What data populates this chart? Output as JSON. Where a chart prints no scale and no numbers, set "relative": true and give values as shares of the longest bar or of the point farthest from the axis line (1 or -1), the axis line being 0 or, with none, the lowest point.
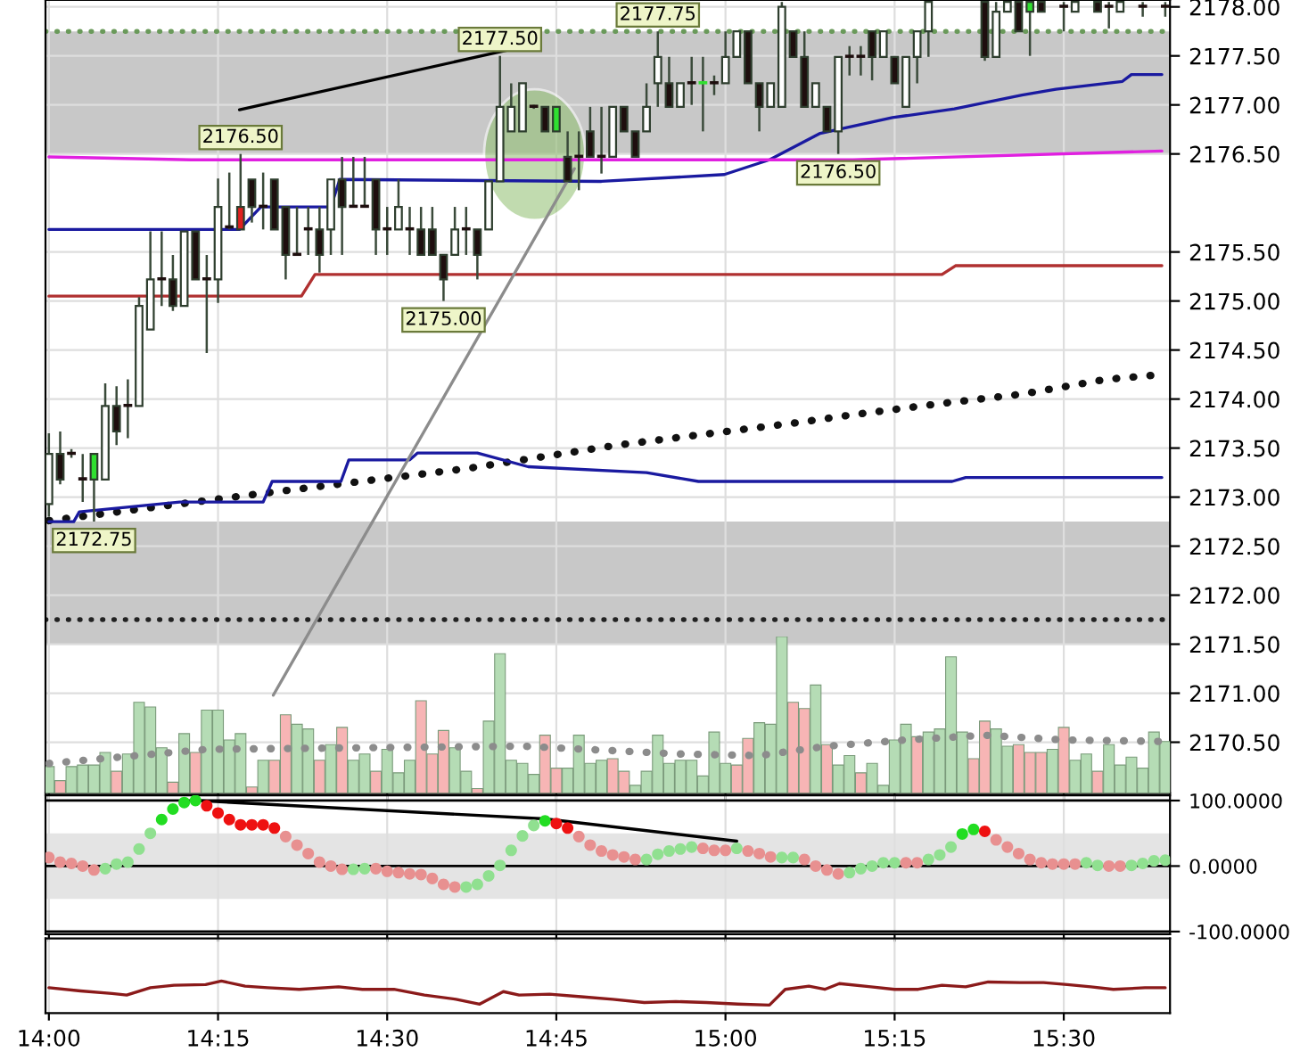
{
  "chart_data": [
    {
      "type": "candlestick",
      "xlim": [
        13.995,
        15.657
      ],
      "ylim": [
        2169.98,
        2178.07
      ],
      "tick_labels": "y",
      "grid": true,
      "xticks": [
        {
          "value": 14.0,
          "label": null
        },
        {
          "value": 14.25,
          "label": null
        },
        {
          "value": 14.5,
          "label": null
        },
        {
          "value": 14.75,
          "label": null
        },
        {
          "value": 15.0,
          "label": null
        },
        {
          "value": 15.25,
          "label": null
        },
        {
          "value": 15.5,
          "label": null
        }
      ],
      "yticks": [
        {
          "value": 2178.0,
          "label": "2178.00"
        },
        {
          "value": 2177.5,
          "label": "2177.50"
        },
        {
          "value": 2177.0,
          "label": "2177.00"
        },
        {
          "value": 2176.5,
          "label": "2176.50"
        },
        {
          "value": 2175.5,
          "label": "2175.50"
        },
        {
          "value": 2175.0,
          "label": "2175.00"
        },
        {
          "value": 2174.5,
          "label": "2174.50"
        },
        {
          "value": 2174.0,
          "label": "2174.00"
        },
        {
          "value": 2173.5,
          "label": "2173.50"
        },
        {
          "value": 2173.0,
          "label": "2173.00"
        },
        {
          "value": 2172.5,
          "label": "2172.50"
        },
        {
          "value": 2172.0,
          "label": "2172.00"
        },
        {
          "value": 2171.5,
          "label": "2171.50"
        },
        {
          "value": 2171.0,
          "label": "2171.00"
        },
        {
          "value": 2170.5,
          "label": "2170.50"
        }
      ],
      "x": [
        14.0,
        14.0167,
        14.0333,
        14.05,
        14.0667,
        14.0833,
        14.1,
        14.1167,
        14.1333,
        14.15,
        14.1667,
        14.1833,
        14.2,
        14.2167,
        14.2333,
        14.25,
        14.2667,
        14.2833,
        14.3,
        14.3167,
        14.3333,
        14.35,
        14.3667,
        14.3833,
        14.4,
        14.4167,
        14.4333,
        14.45,
        14.4667,
        14.4833,
        14.5,
        14.5167,
        14.5333,
        14.55,
        14.5667,
        14.5833,
        14.6,
        14.6167,
        14.6333,
        14.65,
        14.6667,
        14.6833,
        14.7,
        14.7167,
        14.7333,
        14.75,
        14.7667,
        14.7833,
        14.8,
        14.8167,
        14.8333,
        14.85,
        14.8667,
        14.8833,
        14.9,
        14.9167,
        14.9333,
        14.95,
        14.9667,
        14.9833,
        15.0,
        15.0167,
        15.0333,
        15.05,
        15.0667,
        15.0833,
        15.1,
        15.1167,
        15.1333,
        15.15,
        15.1667,
        15.1833,
        15.2,
        15.2167,
        15.2333,
        15.25,
        15.2667,
        15.2833,
        15.3,
        15.3833,
        15.4,
        15.4167,
        15.4333,
        15.45,
        15.4667,
        15.5,
        15.5167,
        15.55,
        15.5667,
        15.5833,
        15.6167,
        15.65
      ],
      "ohlc": [
        [
          2172.93,
          2173.65,
          2172.8,
          2173.44
        ],
        [
          2173.44,
          2173.67,
          2173.13,
          2173.18
        ],
        [
          2173.44,
          2173.49,
          2173.4,
          2173.44
        ],
        [
          2173.18,
          2173.44,
          2172.95,
          2173.18
        ],
        [
          2173.18,
          2173.44,
          2172.75,
          2173.44
        ],
        [
          2173.18,
          2174.16,
          2173.18,
          2173.93
        ],
        [
          2173.93,
          2174.13,
          2173.53,
          2173.67
        ],
        [
          2173.93,
          2174.2,
          2173.6,
          2173.93
        ],
        [
          2173.93,
          2175.04,
          2173.93,
          2174.95
        ],
        [
          2174.71,
          2175.71,
          2174.71,
          2175.22
        ],
        [
          2175.22,
          2175.71,
          2174.95,
          2175.22
        ],
        [
          2175.22,
          2175.47,
          2174.9,
          2174.95
        ],
        [
          2174.95,
          2175.71,
          2174.95,
          2175.71
        ],
        [
          2175.71,
          2175.71,
          2175.22,
          2175.22
        ],
        [
          2175.22,
          2175.47,
          2174.47,
          2175.22
        ],
        [
          2175.22,
          2176.25,
          2174.98,
          2175.96
        ],
        [
          2175.75,
          2176.31,
          2175.73,
          2175.75
        ],
        [
          2175.96,
          2176.5,
          2175.73,
          2175.73
        ],
        [
          2176.24,
          2176.24,
          2175.8,
          2175.96
        ],
        [
          2175.96,
          2176.31,
          2175.73,
          2175.96
        ],
        [
          2176.24,
          2176.24,
          2175.73,
          2175.73
        ],
        [
          2175.96,
          2175.96,
          2175.22,
          2175.47
        ],
        [
          2175.47,
          2175.96,
          2175.47,
          2175.47
        ],
        [
          2175.73,
          2175.96,
          2175.47,
          2175.73
        ],
        [
          2175.73,
          2175.96,
          2175.29,
          2175.47
        ],
        [
          2175.73,
          2176.24,
          2175.47,
          2176.24
        ],
        [
          2176.24,
          2176.47,
          2175.47,
          2175.96
        ],
        [
          2175.96,
          2176.47,
          2175.96,
          2175.96
        ],
        [
          2175.96,
          2176.47,
          2175.96,
          2175.96
        ],
        [
          2176.24,
          2176.24,
          2175.47,
          2175.73
        ],
        [
          2175.73,
          2175.96,
          2175.47,
          2175.73
        ],
        [
          2175.73,
          2176.24,
          2175.73,
          2175.96
        ],
        [
          2175.73,
          2175.96,
          2175.47,
          2175.73
        ],
        [
          2175.73,
          2175.96,
          2175.47,
          2175.47
        ],
        [
          2175.73,
          2175.96,
          2175.47,
          2175.47
        ],
        [
          2175.47,
          2175.47,
          2175.0,
          2175.22
        ],
        [
          2175.47,
          2175.96,
          2175.47,
          2175.73
        ],
        [
          2175.73,
          2175.96,
          2175.47,
          2175.73
        ],
        [
          2175.73,
          2175.73,
          2175.22,
          2175.47
        ],
        [
          2175.73,
          2176.22,
          2175.73,
          2176.22
        ],
        [
          2176.22,
          2177.5,
          2176.22,
          2176.98
        ],
        [
          2176.73,
          2177.22,
          2176.73,
          2176.98
        ],
        [
          2176.73,
          2177.22,
          2176.73,
          2177.22
        ],
        [
          2176.98,
          2177.0,
          2176.96,
          2176.98
        ],
        [
          2176.98,
          2176.98,
          2176.73,
          2176.73
        ],
        [
          2176.73,
          2176.98,
          2176.73,
          2176.98
        ],
        [
          2176.47,
          2176.73,
          2176.22,
          2176.22
        ],
        [
          2176.47,
          2176.73,
          2176.13,
          2176.47
        ],
        [
          2176.73,
          2176.98,
          2176.47,
          2176.47
        ],
        [
          2176.47,
          2176.98,
          2176.3,
          2176.47
        ],
        [
          2176.47,
          2176.98,
          2176.47,
          2176.98
        ],
        [
          2176.98,
          2176.98,
          2176.73,
          2176.73
        ],
        [
          2176.73,
          2176.73,
          2176.47,
          2176.47
        ],
        [
          2176.73,
          2177.22,
          2176.73,
          2176.98
        ],
        [
          2177.22,
          2177.75,
          2176.98,
          2177.49
        ],
        [
          2177.22,
          2177.49,
          2176.98,
          2176.98
        ],
        [
          2176.98,
          2177.22,
          2176.98,
          2177.22
        ],
        [
          2177.22,
          2177.49,
          2177.0,
          2177.22
        ],
        [
          2177.22,
          2177.49,
          2176.73,
          2177.22
        ],
        [
          2177.22,
          2177.3,
          2177.1,
          2177.22
        ],
        [
          2177.22,
          2177.75,
          2177.22,
          2177.49
        ],
        [
          2177.49,
          2177.75,
          2177.49,
          2177.75
        ],
        [
          2177.75,
          2177.75,
          2177.22,
          2177.22
        ],
        [
          2177.22,
          2177.22,
          2176.73,
          2176.98
        ],
        [
          2176.98,
          2177.22,
          2176.98,
          2177.22
        ],
        [
          2176.98,
          2178.05,
          2176.98,
          2178.0
        ],
        [
          2177.75,
          2177.75,
          2177.49,
          2177.49
        ],
        [
          2177.49,
          2177.75,
          2176.98,
          2176.98
        ],
        [
          2176.98,
          2177.22,
          2176.98,
          2177.22
        ],
        [
          2176.98,
          2176.98,
          2176.73,
          2176.73
        ],
        [
          2176.73,
          2177.49,
          2176.5,
          2177.49
        ],
        [
          2177.49,
          2177.6,
          2177.3,
          2177.49
        ],
        [
          2177.49,
          2177.6,
          2177.3,
          2177.49
        ],
        [
          2177.75,
          2177.75,
          2177.25,
          2177.49
        ],
        [
          2177.49,
          2177.75,
          2177.49,
          2177.75
        ],
        [
          2177.49,
          2177.49,
          2177.22,
          2177.22
        ],
        [
          2176.98,
          2177.49,
          2176.98,
          2177.49
        ],
        [
          2177.49,
          2177.75,
          2177.22,
          2177.75
        ],
        [
          2177.75,
          2178.05,
          2177.49,
          2178.05
        ],
        [
          2178.05,
          2178.05,
          2177.45,
          2177.49
        ],
        [
          2177.49,
          2178.05,
          2177.49,
          2177.95
        ],
        [
          2177.95,
          2178.05,
          2177.95,
          2178.05
        ],
        [
          2178.05,
          2178.05,
          2177.75,
          2177.75
        ],
        [
          2177.95,
          2178.05,
          2177.5,
          2178.05
        ],
        [
          2178.05,
          2178.05,
          2177.95,
          2177.95
        ],
        [
          2178.0,
          2178.05,
          2177.75,
          2178.0
        ],
        [
          2177.95,
          2178.05,
          2177.95,
          2178.05
        ],
        [
          2178.05,
          2178.05,
          2177.95,
          2177.95
        ],
        [
          2178.0,
          2178.05,
          2177.78,
          2178.0
        ],
        [
          2177.95,
          2178.05,
          2177.95,
          2178.05
        ],
        [
          2178.0,
          2178.05,
          2177.9,
          2178.0
        ],
        [
          2178.0,
          2178.05,
          2177.9,
          2178.0
        ]
      ],
      "colors": [
        "#ffffff",
        "#1e0e0e",
        "#1e0e0e",
        "#1e0e0e",
        "#30e030",
        "#ffffff",
        "#1e0e0e",
        "#1e0e0e",
        "#ffffff",
        "#ffffff",
        "#1e0e0e",
        "#1e0e0e",
        "#ffffff",
        "#1e0e0e",
        "#1e0e0e",
        "#ffffff",
        "#1e0e0e",
        "#e02020",
        "#1e0e0e",
        "#1e0e0e",
        "#1e0e0e",
        "#1e0e0e",
        "#1e0e0e",
        "#1e0e0e",
        "#1e0e0e",
        "#ffffff",
        "#1e0e0e",
        "#1e0e0e",
        "#1e0e0e",
        "#1e0e0e",
        "#1e0e0e",
        "#ffffff",
        "#1e0e0e",
        "#1e0e0e",
        "#1e0e0e",
        "#1e0e0e",
        "#ffffff",
        "#1e0e0e",
        "#1e0e0e",
        "#ffffff",
        "#ffffff",
        "#ffffff",
        "#ffffff",
        "#1e0e0e",
        "#1e0e0e",
        "#30e030",
        "#1e0e0e",
        "#1e0e0e",
        "#1e0e0e",
        "#1e0e0e",
        "#ffffff",
        "#1e0e0e",
        "#1e0e0e",
        "#ffffff",
        "#ffffff",
        "#1e0e0e",
        "#ffffff",
        "#1e0e0e",
        "#30e030",
        "#1e0e0e",
        "#ffffff",
        "#ffffff",
        "#1e0e0e",
        "#1e0e0e",
        "#ffffff",
        "#ffffff",
        "#1e0e0e",
        "#1e0e0e",
        "#ffffff",
        "#1e0e0e",
        "#ffffff",
        "#1e0e0e",
        "#1e0e0e",
        "#1e0e0e",
        "#ffffff",
        "#1e0e0e",
        "#ffffff",
        "#ffffff",
        "#ffffff",
        "#1e0e0e",
        "#ffffff",
        "#ffffff",
        "#1e0e0e",
        "#30e030",
        "#1e0e0e",
        "#1e0e0e",
        "#ffffff",
        "#1e0e0e",
        "#1e0e0e",
        "#ffffff",
        "#1e0e0e",
        "#1e0e0e"
      ],
      "series": [
        {
          "type": "line",
          "color": "#111111",
          "line_style": "dotted",
          "x": [
            14.0,
            14.3183,
            14.6167,
            14.84,
            15.1067,
            15.1883,
            15.3133,
            15.4383,
            15.5617,
            15.645
          ],
          "values": [
            2172.76,
            2173.04,
            2173.29,
            2173.53,
            2173.76,
            2173.84,
            2173.95,
            2174.05,
            2174.2,
            2174.25
          ]
        },
        {
          "type": "line",
          "color": "#1a1aa0",
          "line_style": "solid",
          "x": [
            14.0,
            14.2817,
            14.3133,
            14.4167,
            14.43,
            14.8167,
            14.9983,
            15.065,
            15.14,
            15.2467,
            15.3383,
            15.4383,
            15.4883,
            15.5867,
            15.6,
            15.645
          ],
          "values": [
            2175.73,
            2175.73,
            2175.96,
            2175.96,
            2176.24,
            2176.22,
            2176.29,
            2176.44,
            2176.71,
            2176.87,
            2176.96,
            2177.1,
            2177.16,
            2177.24,
            2177.31,
            2177.31
          ]
        },
        {
          "type": "line",
          "color": "#1a1aa0",
          "line_style": "solid",
          "x": [
            14.0,
            14.0367,
            14.045,
            14.1933,
            14.3167,
            14.33,
            14.4317,
            14.4433,
            14.5333,
            14.545,
            14.6333,
            14.7083,
            14.8833,
            14.96,
            15.335,
            15.355,
            15.645
          ],
          "values": [
            2172.75,
            2172.75,
            2172.85,
            2172.95,
            2172.95,
            2173.16,
            2173.16,
            2173.38,
            2173.38,
            2173.45,
            2173.45,
            2173.31,
            2173.25,
            2173.16,
            2173.16,
            2173.2,
            2173.2
          ]
        },
        {
          "type": "line",
          "color": "#b03030",
          "line_style": "solid",
          "x": [
            14.0,
            14.3733,
            14.3933,
            15.32,
            15.34,
            15.645
          ],
          "values": [
            2175.05,
            2175.05,
            2175.27,
            2175.27,
            2175.36,
            2175.36
          ]
        },
        {
          "type": "line",
          "color": "#e020e0",
          "line_style": "solid",
          "x": [
            14.0,
            14.21,
            15.1883,
            15.645
          ],
          "values": [
            2176.47,
            2176.44,
            2176.44,
            2176.53
          ]
        },
        {
          "type": "line",
          "color": "#000000",
          "line_style": "solid",
          "x": [
            14.2817,
            14.6783
          ],
          "values": [
            2176.95,
            2177.56
          ]
        },
        {
          "type": "line",
          "color": "#8c8c8c",
          "line_style": "solid",
          "x": [
            14.3317,
            14.7767
          ],
          "values": [
            2170.98,
            2176.35
          ]
        }
      ],
      "ref_lines": [
        {
          "axis": "y",
          "value": 2177.75,
          "color": "#6a9a5a",
          "line_style": "dotted"
        },
        {
          "axis": "y",
          "value": 2171.75,
          "color": "#222222",
          "line_style": "dotted"
        }
      ],
      "bands": [
        {
          "axis": "y",
          "from": 2176.5,
          "to": 2177.75,
          "color": "#c8c8c8"
        },
        {
          "axis": "y",
          "from": 2171.5,
          "to": 2172.75,
          "color": "#c8c8c8"
        }
      ],
      "annotations": [
        {
          "text": "2176.50",
          "x": 14.2833,
          "y": 2176.5
        },
        {
          "text": "2177.50",
          "x": 14.6667,
          "y": 2177.5
        },
        {
          "text": "2175.00",
          "x": 14.5833,
          "y": 2175.0
        },
        {
          "text": "2172.75",
          "x": 14.0667,
          "y": 2172.75
        },
        {
          "text": "2177.75",
          "x": 14.9,
          "y": 2177.75
        },
        {
          "text": "2176.50",
          "x": 15.1667,
          "y": 2176.5
        }
      ]
    },
    {
      "type": "bar",
      "relative": true,
      "tick_labels": false,
      "xlim": [
        13.995,
        15.657
      ],
      "series": [
        {
          "type": "bar",
          "x": [
            14.0,
            14.0167,
            14.0333,
            14.05,
            14.0667,
            14.0833,
            14.1,
            14.1167,
            14.1333,
            14.15,
            14.1667,
            14.1833,
            14.2,
            14.2167,
            14.2333,
            14.25,
            14.2667,
            14.2833,
            14.3,
            14.3167,
            14.3333,
            14.35,
            14.3667,
            14.3833,
            14.4,
            14.4167,
            14.4333,
            14.45,
            14.4667,
            14.4833,
            14.5,
            14.5167,
            14.5333,
            14.55,
            14.5667,
            14.5833,
            14.6,
            14.6167,
            14.6333,
            14.65,
            14.6667,
            14.6833,
            14.7,
            14.7167,
            14.7333,
            14.75,
            14.7667,
            14.7833,
            14.8,
            14.8167,
            14.8333,
            14.85,
            14.8667,
            14.8833,
            14.9,
            14.9167,
            14.9333,
            14.95,
            14.9667,
            14.9833,
            15.0,
            15.0167,
            15.0333,
            15.05,
            15.0667,
            15.0833,
            15.1,
            15.1167,
            15.1333,
            15.15,
            15.1667,
            15.1833,
            15.2,
            15.2167,
            15.2333,
            15.25,
            15.2667,
            15.2833,
            15.3,
            15.3167,
            15.3333,
            15.35,
            15.3667,
            15.3833,
            15.4,
            15.4167,
            15.4333,
            15.45,
            15.4667,
            15.4833,
            15.5,
            15.5167,
            15.5333,
            15.55,
            15.5667,
            15.5833,
            15.6,
            15.6167,
            15.6333,
            15.65
          ],
          "values": [
            0.17,
            0.08,
            0.17,
            0.18,
            0.18,
            0.26,
            0.14,
            0.25,
            0.58,
            0.55,
            0.29,
            0.07,
            0.38,
            0.26,
            0.53,
            0.53,
            0.34,
            0.38,
            0.04,
            0.21,
            0.21,
            0.5,
            0.44,
            0.41,
            0.21,
            0.31,
            0.42,
            0.21,
            0.25,
            0.14,
            0.28,
            0.13,
            0.21,
            0.59,
            0.25,
            0.4,
            0.29,
            0.14,
            0.03,
            0.46,
            0.89,
            0.21,
            0.19,
            0.12,
            0.37,
            0.16,
            0.16,
            0.37,
            0.19,
            0.21,
            0.22,
            0.14,
            0.05,
            0.14,
            0.37,
            0.19,
            0.21,
            0.21,
            0.11,
            0.39,
            0.19,
            0.18,
            0.35,
            0.45,
            0.44,
            1,
            0.58,
            0.54,
            0.69,
            0.31,
            0.18,
            0.24,
            0.13,
            0.19,
            0.05,
            0.34,
            0.44,
            0.36,
            0.39,
            0.41,
            0.87,
            0.39,
            0.22,
            0.46,
            0.41,
            0.3,
            0.31,
            0.26,
            0.26,
            0.28,
            0.42,
            0.21,
            0.25,
            0.14,
            0.31,
            0.18,
            0.23,
            0.16,
            0.39,
            0.33
          ],
          "colors": [
            "#b5dcb5",
            "#f7b5b5",
            "#b5dcb5",
            "#b5dcb5",
            "#b5dcb5",
            "#b5dcb5",
            "#f7b5b5",
            "#b5dcb5",
            "#b5dcb5",
            "#b5dcb5",
            "#b5dcb5",
            "#f7b5b5",
            "#b5dcb5",
            "#f7b5b5",
            "#b5dcb5",
            "#b5dcb5",
            "#b5dcb5",
            "#b5dcb5",
            "#f7b5b5",
            "#b5dcb5",
            "#f7b5b5",
            "#f7b5b5",
            "#b5dcb5",
            "#b5dcb5",
            "#f7b5b5",
            "#b5dcb5",
            "#f7b5b5",
            "#b5dcb5",
            "#b5dcb5",
            "#f7b5b5",
            "#b5dcb5",
            "#b5dcb5",
            "#b5dcb5",
            "#f7b5b5",
            "#f7b5b5",
            "#f7b5b5",
            "#b5dcb5",
            "#b5dcb5",
            "#f7b5b5",
            "#b5dcb5",
            "#b5dcb5",
            "#b5dcb5",
            "#b5dcb5",
            "#b5dcb5",
            "#f7b5b5",
            "#f7b5b5",
            "#b5dcb5",
            "#b5dcb5",
            "#b5dcb5",
            "#b5dcb5",
            "#f7b5b5",
            "#f7b5b5",
            "#b5dcb5",
            "#b5dcb5",
            "#b5dcb5",
            "#b5dcb5",
            "#b5dcb5",
            "#b5dcb5",
            "#b5dcb5",
            "#b5dcb5",
            "#b5dcb5",
            "#f7b5b5",
            "#f7b5b5",
            "#b5dcb5",
            "#b5dcb5",
            "#b5dcb5",
            "#f7b5b5",
            "#f7b5b5",
            "#b5dcb5",
            "#f7b5b5",
            "#b5dcb5",
            "#b5dcb5",
            "#f7b5b5",
            "#b5dcb5",
            "#b5dcb5",
            "#b5dcb5",
            "#b5dcb5",
            "#f7b5b5",
            "#b5dcb5",
            "#b5dcb5",
            "#b5dcb5",
            "#b5dcb5",
            "#f7b5b5",
            "#f7b5b5",
            "#b5dcb5",
            "#b5dcb5",
            "#f7b5b5",
            "#f7b5b5",
            "#f7b5b5",
            "#b5dcb5",
            "#f7b5b5",
            "#b5dcb5",
            "#b5dcb5",
            "#f7b5b5",
            "#b5dcb5",
            "#b5dcb5",
            "#b5dcb5",
            "#b5dcb5",
            "#b5dcb5",
            "#b5dcb5"
          ]
        },
        {
          "type": "line",
          "color": "#8c8c8c",
          "line_style": "dotted",
          "x": [
            14.0,
            14.2333,
            14.4667,
            14.7,
            14.9333,
            15.05,
            15.15,
            15.2667,
            15.3833,
            15.5,
            15.65
          ],
          "values": [
            0.19,
            0.28,
            0.29,
            0.3,
            0.25,
            0.24,
            0.3,
            0.34,
            0.37,
            0.34,
            0.33
          ]
        }
      ]
    },
    {
      "type": "scatter",
      "xlim": [
        13.995,
        15.657
      ],
      "ylim": [
        -104,
        108
      ],
      "tick_labels": "y",
      "grid": "x",
      "xticks": [
        {
          "value": 14.0,
          "label": null
        },
        {
          "value": 14.25,
          "label": null
        },
        {
          "value": 14.5,
          "label": null
        },
        {
          "value": 14.75,
          "label": null
        },
        {
          "value": 15.0,
          "label": null
        },
        {
          "value": 15.25,
          "label": null
        },
        {
          "value": 15.5,
          "label": null
        }
      ],
      "yticks": [
        {
          "value": 100,
          "label": "100.0000"
        },
        {
          "value": 0,
          "label": "0.0000"
        },
        {
          "value": -100,
          "label": "-100.0000"
        }
      ],
      "ref_lines": [
        {
          "axis": "y",
          "value": 100,
          "color": "#000000"
        },
        {
          "axis": "y",
          "value": 0,
          "color": "#000000"
        },
        {
          "axis": "y",
          "value": -100,
          "color": "#000000"
        }
      ],
      "bands": [
        {
          "axis": "y",
          "from": -50,
          "to": 50,
          "color": "#e4e4e4"
        }
      ],
      "series": [
        {
          "type": "line",
          "color": "#000000",
          "line_style": "solid",
          "x": [
            14.2167,
            14.7333,
            15.0167
          ],
          "values": [
            100,
            72,
            38
          ]
        },
        {
          "type": "scatter",
          "marker": "circle",
          "x": [
            14.0,
            14.0167,
            14.0333,
            14.05,
            14.0667,
            14.0833,
            14.1,
            14.1167,
            14.1333,
            14.15,
            14.1667,
            14.1833,
            14.2,
            14.2167,
            14.2333,
            14.25,
            14.2667,
            14.2833,
            14.3,
            14.3167,
            14.3333,
            14.35,
            14.3667,
            14.3833,
            14.4,
            14.4167,
            14.4333,
            14.45,
            14.4667,
            14.4833,
            14.5,
            14.5167,
            14.5333,
            14.55,
            14.5667,
            14.5833,
            14.6,
            14.6167,
            14.6333,
            14.65,
            14.6667,
            14.6833,
            14.7,
            14.7167,
            14.7333,
            14.75,
            14.7667,
            14.7833,
            14.8,
            14.8167,
            14.8333,
            14.85,
            14.8667,
            14.8833,
            14.9,
            14.9167,
            14.9333,
            14.95,
            14.9667,
            14.9833,
            15.0,
            15.0167,
            15.0333,
            15.05,
            15.0667,
            15.0833,
            15.1,
            15.1167,
            15.1333,
            15.15,
            15.1667,
            15.1833,
            15.2,
            15.2167,
            15.2333,
            15.25,
            15.2667,
            15.2833,
            15.3,
            15.3167,
            15.3333,
            15.35,
            15.3667,
            15.3833,
            15.4,
            15.4167,
            15.4333,
            15.45,
            15.4667,
            15.4833,
            15.5,
            15.5167,
            15.5333,
            15.55,
            15.5667,
            15.5833,
            15.6,
            15.6167,
            15.6333,
            15.65
          ],
          "values": [
            13,
            6,
            4,
            0,
            -6,
            -4,
            3,
            6,
            26,
            50,
            71,
            87,
            97,
            100,
            92,
            81,
            71,
            63,
            63,
            63,
            58,
            45,
            32,
            19,
            6,
            0,
            -5,
            -5,
            -4,
            -4,
            -8,
            -10,
            -12,
            -13,
            -19,
            -28,
            -32,
            -32,
            -28,
            -15,
            1,
            24,
            46,
            62,
            69,
            65,
            58,
            45,
            32,
            23,
            17,
            14,
            10,
            10,
            18,
            23,
            26,
            29,
            27,
            24,
            24,
            27,
            23,
            19,
            14,
            13,
            13,
            10,
            0,
            -6,
            -12,
            -10,
            -4,
            0,
            5,
            5,
            5,
            5,
            10,
            17,
            29,
            49,
            56,
            53,
            40,
            29,
            19,
            10,
            5,
            3,
            3,
            3,
            5,
            1,
            0,
            0,
            1,
            4,
            8,
            9
          ],
          "colors": [
            "#e89090",
            "#e89090",
            "#e89090",
            "#e89090",
            "#e89090",
            "#90e090",
            "#90e090",
            "#90e090",
            "#90e090",
            "#90e090",
            "#22dd22",
            "#22dd22",
            "#22dd22",
            "#22dd22",
            "#ee1111",
            "#ee1111",
            "#ee1111",
            "#ee1111",
            "#ee1111",
            "#ee1111",
            "#ee1111",
            "#e89090",
            "#e89090",
            "#e89090",
            "#e89090",
            "#e89090",
            "#e89090",
            "#90e090",
            "#90e090",
            "#e89090",
            "#e89090",
            "#e89090",
            "#e89090",
            "#e89090",
            "#e89090",
            "#e89090",
            "#e89090",
            "#90e090",
            "#90e090",
            "#90e090",
            "#90e090",
            "#90e090",
            "#90e090",
            "#90e090",
            "#22dd22",
            "#ee1111",
            "#ee1111",
            "#e89090",
            "#e89090",
            "#e89090",
            "#e89090",
            "#e89090",
            "#e89090",
            "#90e090",
            "#90e090",
            "#90e090",
            "#90e090",
            "#90e090",
            "#e89090",
            "#e89090",
            "#e89090",
            "#90e090",
            "#e89090",
            "#e89090",
            "#e89090",
            "#90e090",
            "#90e090",
            "#e89090",
            "#e89090",
            "#e89090",
            "#e89090",
            "#90e090",
            "#90e090",
            "#90e090",
            "#90e090",
            "#90e090",
            "#e89090",
            "#e89090",
            "#90e090",
            "#90e090",
            "#90e090",
            "#22dd22",
            "#22dd22",
            "#ee1111",
            "#e89090",
            "#e89090",
            "#e89090",
            "#e89090",
            "#e89090",
            "#e89090",
            "#e89090",
            "#e89090",
            "#90e090",
            "#90e090",
            "#e89090",
            "#e89090",
            "#90e090",
            "#90e090",
            "#90e090",
            "#90e090"
          ]
        }
      ]
    },
    {
      "type": "line",
      "relative": true,
      "tick_labels": "x",
      "grid": "x",
      "xlim": [
        13.995,
        15.657
      ],
      "xticks": [
        {
          "value": 14.0,
          "label": "14:00"
        },
        {
          "value": 14.25,
          "label": "14:15"
        },
        {
          "value": 14.5,
          "label": "14:30"
        },
        {
          "value": 14.75,
          "label": "14:45"
        },
        {
          "value": 15.0,
          "label": "15:00"
        },
        {
          "value": 15.25,
          "label": "15:15"
        },
        {
          "value": 15.5,
          "label": "15:30"
        }
      ],
      "series": [
        {
          "type": "line",
          "color": "#8b1a1a",
          "line_style": "solid",
          "x": [
            14.0,
            14.0467,
            14.0933,
            14.115,
            14.15,
            14.185,
            14.2317,
            14.255,
            14.29,
            14.3233,
            14.37,
            14.4283,
            14.4633,
            14.51,
            14.555,
            14.6017,
            14.6367,
            14.6717,
            14.695,
            14.74,
            14.7867,
            14.8333,
            14.88,
            14.9267,
            14.9717,
            15.0183,
            15.065,
            15.0883,
            15.1233,
            15.1467,
            15.1683,
            15.215,
            15.25,
            15.285,
            15.32,
            15.355,
            15.3883,
            15.435,
            15.47,
            15.505,
            15.54,
            15.5733,
            15.62,
            15.65
          ],
          "values": [
            0.79,
            0.69,
            0.61,
            0.56,
            0.79,
            0.87,
            0.89,
            1,
            0.84,
            0.79,
            0.74,
            0.82,
            0.74,
            0.74,
            0.56,
            0.43,
            0.28,
            0.67,
            0.56,
            0.59,
            0.51,
            0.43,
            0.33,
            0.36,
            0.33,
            0.28,
            0.25,
            0.74,
            0.84,
            0.74,
            0.92,
            0.82,
            0.74,
            0.74,
            0.87,
            0.82,
            0.97,
            0.95,
            0.95,
            0.89,
            0.82,
            0.74,
            0.79,
            0.79
          ]
        }
      ]
    }
  ]
}
